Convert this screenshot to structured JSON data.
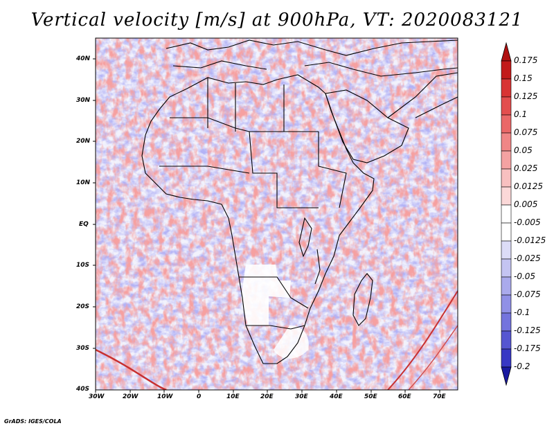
{
  "title": "Vertical velocity [m/s] at 900hPa, VT: 2020083121",
  "footer": "GrADS: IGES/COLA",
  "map": {
    "lat_labels": [
      "40N",
      "30N",
      "20N",
      "10N",
      "EQ",
      "10S",
      "20S",
      "30S",
      "40S"
    ],
    "lon_labels": [
      "30W",
      "20W",
      "10W",
      "0",
      "10E",
      "20E",
      "30E",
      "40E",
      "50E",
      "60E",
      "70E"
    ]
  },
  "colorbar": {
    "labels": [
      "0.175",
      "0.15",
      "0.125",
      "0.1",
      "0.075",
      "0.05",
      "0.025",
      "0.0125",
      "0.005",
      "-0.005",
      "-0.0125",
      "-0.025",
      "-0.05",
      "-0.075",
      "-0.1",
      "-0.125",
      "-0.175",
      "-0.2"
    ],
    "colors": [
      "#c21a1a",
      "#d83434",
      "#e34e4e",
      "#ea6868",
      "#f08686",
      "#f4a2a2",
      "#f8c0c0",
      "#fbd8d8",
      "#ffffff",
      "#ffffff",
      "#dcdcf7",
      "#c4c4f2",
      "#aaaaec",
      "#9090e6",
      "#7474dd",
      "#5656d1",
      "#3838c4",
      "#1c1caf"
    ],
    "over_color": "#b01010",
    "under_color": "#1a1aa0"
  }
}
